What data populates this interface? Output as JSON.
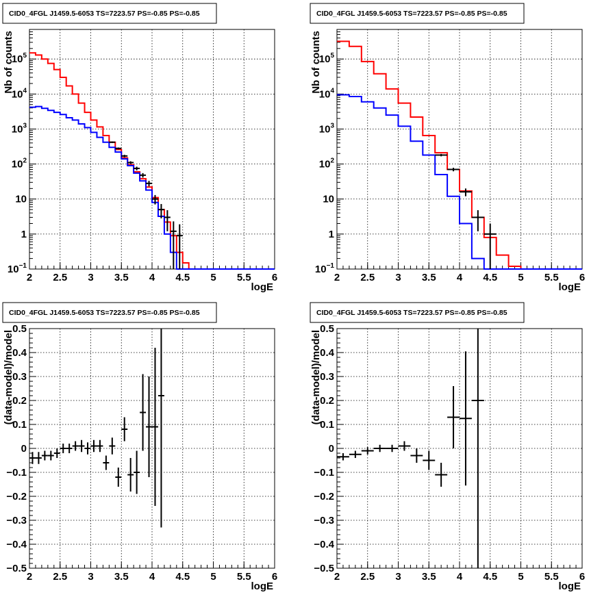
{
  "title": "CID0_4FGL J1459.5-6053 TS=7223.57 PS=-0.85 PS=-0.85",
  "colors": {
    "model_total": "#ff0000",
    "model_source": "#0000ff",
    "data": "#000000"
  },
  "chart_data": [
    {
      "type": "line",
      "panel": "top-left",
      "title": "CID0_4FGL J1459.5-6053 TS=7223.57 PS=-0.85 PS=-0.85",
      "xlabel": "logE",
      "ylabel": "Nb of counts",
      "xlim": [
        2,
        6
      ],
      "ylim": [
        0.1,
        700000
      ],
      "yscale": "log",
      "grid": true,
      "xticks": [
        "2",
        "2.5",
        "3",
        "3.5",
        "4",
        "4.5",
        "5",
        "5.5",
        "6"
      ],
      "yticks": [
        {
          "base": "10",
          "exp": "−1"
        },
        {
          "base": "1",
          "exp": ""
        },
        {
          "base": "10",
          "exp": ""
        },
        {
          "base": "10",
          "exp": "2"
        },
        {
          "base": "10",
          "exp": "3"
        },
        {
          "base": "10",
          "exp": "4"
        },
        {
          "base": "10",
          "exp": "5"
        }
      ],
      "series": [
        {
          "kind": "step",
          "color": "#ff0000",
          "bin_width": 0.1,
          "x": [
            2.0,
            2.1,
            2.2,
            2.3,
            2.4,
            2.5,
            2.6,
            2.7,
            2.8,
            2.9,
            3.0,
            3.1,
            3.2,
            3.3,
            3.4,
            3.5,
            3.6,
            3.7,
            3.8,
            3.9,
            4.0,
            4.1,
            4.2,
            4.3,
            4.4,
            4.5,
            4.6,
            4.7,
            4.8,
            4.9,
            5.0,
            5.1,
            5.2,
            5.3,
            5.4,
            5.5,
            5.6,
            5.7,
            5.8,
            5.9
          ],
          "values": [
            150000,
            130000,
            100000,
            75000,
            50000,
            30000,
            17000,
            10000,
            5500,
            3000,
            1800,
            1150,
            650,
            420,
            260,
            150,
            95,
            60,
            38,
            22,
            11,
            5,
            2.2,
            0.9,
            0.3,
            0.15,
            0.1,
            0.1,
            0.1,
            0.1,
            0.1,
            0.1,
            0.1,
            0.1,
            0.1,
            0.1,
            0.1,
            0.1,
            0.1,
            0.1
          ]
        },
        {
          "kind": "step",
          "color": "#0000ff",
          "bin_width": 0.1,
          "x": [
            2.0,
            2.1,
            2.2,
            2.3,
            2.4,
            2.5,
            2.6,
            2.7,
            2.8,
            2.9,
            3.0,
            3.1,
            3.2,
            3.3,
            3.4,
            3.5,
            3.6,
            3.7,
            3.8,
            3.9,
            4.0,
            4.1,
            4.2,
            4.3,
            4.4,
            4.5,
            4.6,
            4.7,
            4.8,
            4.9,
            5.0,
            5.1,
            5.2,
            5.3,
            5.4,
            5.5,
            5.6,
            5.7,
            5.8,
            5.9
          ],
          "values": [
            4200,
            4400,
            3900,
            3400,
            3000,
            2600,
            2100,
            1800,
            1400,
            1100,
            800,
            580,
            420,
            300,
            220,
            140,
            90,
            55,
            33,
            18,
            8,
            3.2,
            1,
            0.3,
            0.1,
            0.1,
            0.1,
            0.1,
            0.1,
            0.1,
            0.1,
            0.1,
            0.1,
            0.1,
            0.1,
            0.1,
            0.1,
            0.1,
            0.1,
            0.1
          ]
        },
        {
          "kind": "points",
          "color": "#000000",
          "x": [
            3.35,
            3.45,
            3.55,
            3.65,
            3.75,
            3.85,
            3.95,
            4.05,
            4.15,
            4.25,
            4.35,
            4.45
          ],
          "xerr": 0.05,
          "values": [
            420,
            280,
            170,
            110,
            75,
            48,
            28,
            10,
            5,
            3,
            1.2,
            0.9
          ],
          "yerr": [
            20,
            17,
            13,
            10,
            9,
            7,
            5,
            3,
            2.2,
            1.8,
            1.1,
            1
          ]
        }
      ]
    },
    {
      "type": "line",
      "panel": "top-right",
      "title": "CID0_4FGL J1459.5-6053 TS=7223.57 PS=-0.85 PS=-0.85",
      "xlabel": "logE",
      "ylabel": "Nb of counts",
      "xlim": [
        2,
        6
      ],
      "ylim": [
        0.1,
        700000
      ],
      "yscale": "log",
      "grid": true,
      "xticks": [
        "2",
        "2.5",
        "3",
        "3.5",
        "4",
        "4.5",
        "5",
        "5.5",
        "6"
      ],
      "yticks": [
        {
          "base": "10",
          "exp": "−1"
        },
        {
          "base": "1",
          "exp": ""
        },
        {
          "base": "10",
          "exp": ""
        },
        {
          "base": "10",
          "exp": "2"
        },
        {
          "base": "10",
          "exp": "3"
        },
        {
          "base": "10",
          "exp": "4"
        },
        {
          "base": "10",
          "exp": "5"
        }
      ],
      "series": [
        {
          "kind": "step",
          "color": "#ff0000",
          "bin_width": 0.2,
          "x": [
            2.0,
            2.2,
            2.4,
            2.6,
            2.8,
            3.0,
            3.2,
            3.4,
            3.6,
            3.8,
            4.0,
            4.2,
            4.4,
            4.6,
            4.8,
            5.0,
            5.2,
            5.4,
            5.6,
            5.8
          ],
          "values": [
            320000,
            230000,
            85000,
            38000,
            14000,
            5500,
            2200,
            650,
            210,
            70,
            17,
            3,
            0.8,
            0.25,
            0.12,
            0.1,
            0.1,
            0.1,
            0.1,
            0.1
          ]
        },
        {
          "kind": "step",
          "color": "#0000ff",
          "bin_width": 0.2,
          "x": [
            2.0,
            2.2,
            2.4,
            2.6,
            2.8,
            3.0,
            3.2,
            3.4,
            3.6,
            3.8,
            4.0,
            4.2,
            4.4,
            4.6,
            4.8,
            5.0,
            5.2,
            5.4,
            5.6,
            5.8
          ],
          "values": [
            9500,
            8500,
            6000,
            4000,
            2500,
            1200,
            450,
            180,
            50,
            12,
            2,
            0.2,
            0.1,
            0.1,
            0.1,
            0.1,
            0.1,
            0.1,
            0.1,
            0.1
          ]
        },
        {
          "kind": "points",
          "color": "#000000",
          "x": [
            3.7,
            3.9,
            4.1,
            4.3,
            4.5
          ],
          "xerr": 0.1,
          "values": [
            180,
            70,
            16,
            3,
            1
          ],
          "yerr": [
            14,
            8,
            4,
            1.8,
            1
          ]
        }
      ]
    },
    {
      "type": "scatter",
      "panel": "bottom-left",
      "title": "CID0_4FGL J1459.5-6053 TS=7223.57 PS=-0.85 PS=-0.85",
      "xlabel": "logE",
      "ylabel": "(data-model)/model",
      "xlim": [
        2,
        6
      ],
      "ylim": [
        -0.5,
        0.5
      ],
      "grid": true,
      "xticks": [
        "2",
        "2.5",
        "3",
        "3.5",
        "4",
        "4.5",
        "5",
        "5.5",
        "6"
      ],
      "yticks": [
        "−0.5",
        "−0.4",
        "−0.3",
        "−0.2",
        "−0.1",
        "0",
        "0.1",
        "0.2",
        "0.3",
        "0.4",
        "0.5"
      ],
      "series": [
        {
          "kind": "points",
          "color": "#000000",
          "x": [
            2.05,
            2.15,
            2.25,
            2.35,
            2.45,
            2.55,
            2.65,
            2.75,
            2.85,
            2.95,
            3.05,
            3.15,
            3.25,
            3.35,
            3.45,
            3.55,
            3.65,
            3.75,
            3.85,
            3.95,
            4.05,
            4.15
          ],
          "xerr": 0.05,
          "values": [
            -0.04,
            -0.04,
            -0.03,
            -0.03,
            -0.02,
            0.0,
            0.0,
            0.01,
            0.01,
            0.0,
            0.01,
            0.01,
            -0.06,
            0.01,
            -0.12,
            0.08,
            -0.11,
            -0.1,
            0.15,
            0.09,
            0.09,
            0.22
          ],
          "yerr": [
            0.025,
            0.025,
            0.02,
            0.02,
            0.02,
            0.02,
            0.02,
            0.02,
            0.025,
            0.025,
            0.025,
            0.025,
            0.03,
            0.035,
            0.04,
            0.05,
            0.07,
            0.09,
            0.16,
            0.21,
            0.33,
            0.55
          ]
        }
      ]
    },
    {
      "type": "scatter",
      "panel": "bottom-right",
      "title": "CID0_4FGL J1459.5-6053 TS=7223.57 PS=-0.85 PS=-0.85",
      "xlabel": "logE",
      "ylabel": "(data-model)/model",
      "xlim": [
        2,
        6
      ],
      "ylim": [
        -0.5,
        0.5
      ],
      "grid": true,
      "xticks": [
        "2",
        "2.5",
        "3",
        "3.5",
        "4",
        "4.5",
        "5",
        "5.5",
        "6"
      ],
      "yticks": [
        "−0.5",
        "−0.4",
        "−0.3",
        "−0.2",
        "−0.1",
        "0",
        "0.1",
        "0.2",
        "0.3",
        "0.4",
        "0.5"
      ],
      "series": [
        {
          "kind": "points",
          "color": "#000000",
          "x": [
            2.1,
            2.3,
            2.5,
            2.7,
            2.9,
            3.1,
            3.3,
            3.5,
            3.7,
            3.9,
            4.1,
            4.3
          ],
          "xerr": 0.1,
          "values": [
            -0.035,
            -0.025,
            -0.01,
            0.0,
            0.0,
            0.01,
            -0.03,
            -0.05,
            -0.11,
            0.13,
            0.125,
            0.2
          ],
          "yerr": [
            0.015,
            0.015,
            0.015,
            0.015,
            0.015,
            0.02,
            0.03,
            0.04,
            0.05,
            0.13,
            0.28,
            0.7
          ]
        }
      ]
    }
  ]
}
